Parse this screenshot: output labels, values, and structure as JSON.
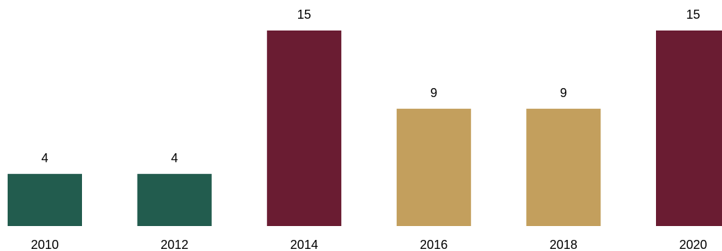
{
  "chart_data": {
    "type": "bar",
    "categories": [
      "2010",
      "2012",
      "2014",
      "2016",
      "2018",
      "2020"
    ],
    "values": [
      4,
      4,
      15,
      9,
      9,
      15
    ],
    "bar_colors": [
      "#225C4E",
      "#225C4E",
      "#6A1C32",
      "#C39F5D",
      "#C39F5D",
      "#6A1C32"
    ],
    "title": "",
    "xlabel": "",
    "ylabel": "",
    "ylim": [
      0,
      15
    ],
    "grid": false,
    "legend": "none",
    "data_labels": true
  }
}
